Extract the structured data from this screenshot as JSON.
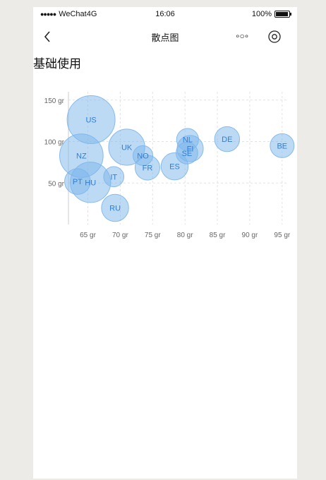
{
  "status_bar": {
    "carrier": "WeChat4G",
    "time": "16:06",
    "battery": "100%"
  },
  "nav": {
    "title": "散点图",
    "more_label": "∘○∘"
  },
  "section": {
    "title": "基础使用"
  },
  "chart_data": {
    "type": "bubble",
    "x_ticks": [
      "65 gr",
      "70 gr",
      "75 gr",
      "80 gr",
      "85 gr",
      "90 gr",
      "95 gr"
    ],
    "y_ticks": [
      "50 gr",
      "100 gr",
      "150 gr"
    ],
    "x_tick_values": [
      65,
      70,
      75,
      80,
      85,
      90,
      95
    ],
    "y_tick_values": [
      50,
      100,
      150
    ],
    "xlim": [
      62,
      96
    ],
    "ylim": [
      0,
      160
    ],
    "grid": true,
    "color": "#7cb5ec",
    "label_color": "#2f7ed8",
    "points": [
      {
        "name": "US",
        "x": 65.5,
        "y": 126.4,
        "z": 35.3
      },
      {
        "name": "NZ",
        "x": 64,
        "y": 82.9,
        "z": 31.3
      },
      {
        "name": "HU",
        "x": 65.4,
        "y": 50.8,
        "z": 28.5
      },
      {
        "name": "UK",
        "x": 71,
        "y": 93.2,
        "z": 24.7
      },
      {
        "name": "DE",
        "x": 86.5,
        "y": 102.9,
        "z": 14.7
      },
      {
        "name": "BE",
        "x": 95,
        "y": 95,
        "z": 13.8
      },
      {
        "name": "RU",
        "x": 69.2,
        "y": 20,
        "z": 16.6
      },
      {
        "name": "PT",
        "x": 63.4,
        "y": 51.8,
        "z": 15.4
      },
      {
        "name": "ES",
        "x": 78.4,
        "y": 70.1,
        "z": 16.6
      },
      {
        "name": "FR",
        "x": 74.2,
        "y": 68.5,
        "z": 14.5
      },
      {
        "name": "FI",
        "x": 80.8,
        "y": 91.5,
        "z": 15.8
      },
      {
        "name": "NL",
        "x": 80.4,
        "y": 102.5,
        "z": 12
      },
      {
        "name": "SE",
        "x": 80.3,
        "y": 86.1,
        "z": 11.8
      },
      {
        "name": "NO",
        "x": 73.5,
        "y": 83.1,
        "z": 10
      },
      {
        "name": "IT",
        "x": 69,
        "y": 57.6,
        "z": 10.4
      }
    ]
  }
}
